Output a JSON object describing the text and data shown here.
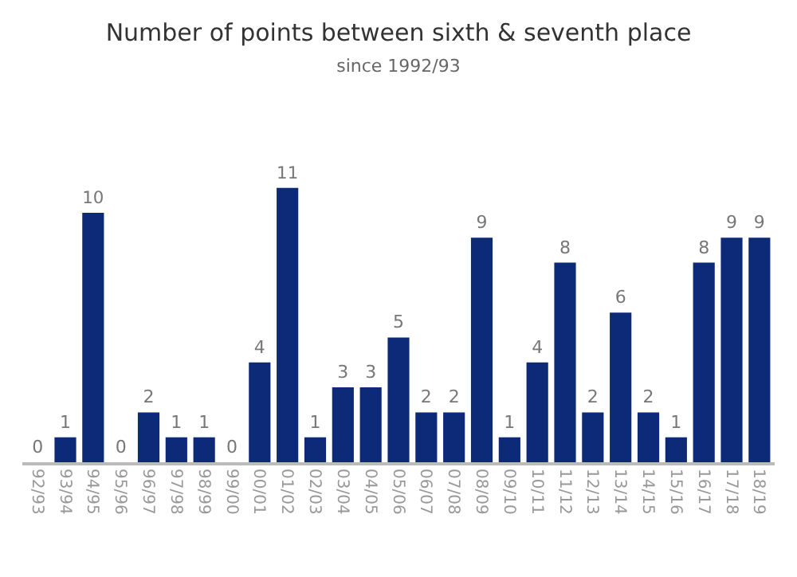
{
  "chart_data": {
    "type": "bar",
    "title": "Number of points between sixth & seventh place",
    "subtitle": "since 1992/93",
    "categories": [
      "92/93",
      "93/94",
      "94/95",
      "95/96",
      "96/97",
      "97/98",
      "98/99",
      "99/00",
      "00/01",
      "01/02",
      "02/03",
      "03/04",
      "04/05",
      "05/06",
      "06/07",
      "07/08",
      "08/09",
      "09/10",
      "10/11",
      "11/12",
      "12/13",
      "13/14",
      "14/15",
      "15/16",
      "16/17",
      "17/18",
      "18/19"
    ],
    "values": [
      0,
      1,
      10,
      0,
      2,
      1,
      1,
      0,
      4,
      11,
      1,
      3,
      3,
      5,
      2,
      2,
      9,
      1,
      4,
      8,
      2,
      6,
      2,
      1,
      8,
      9,
      9
    ],
    "color": "#0c2a78",
    "data_labels": true,
    "grid": false,
    "legend": false
  }
}
